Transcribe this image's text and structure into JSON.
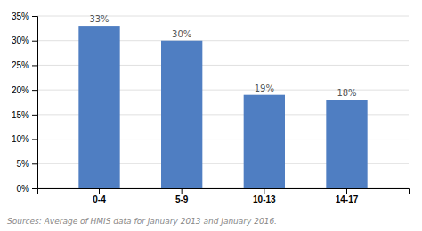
{
  "chart_data": {
    "type": "bar",
    "categories": [
      "0-4",
      "5-9",
      "10-13",
      "14-17"
    ],
    "values": [
      33,
      30,
      19,
      18
    ],
    "value_labels": [
      "33%",
      "30%",
      "19%",
      "18%"
    ],
    "data_labels": true,
    "color": "#4f7ec2",
    "ylim": [
      0,
      35
    ],
    "yticks": [
      {
        "value": 0,
        "label": "0%"
      },
      {
        "value": 5,
        "label": "5%"
      },
      {
        "value": 10,
        "label": "10%"
      },
      {
        "value": 15,
        "label": "15%"
      },
      {
        "value": 20,
        "label": "20%"
      },
      {
        "value": 25,
        "label": "25%"
      },
      {
        "value": 30,
        "label": "30%"
      },
      {
        "value": 35,
        "label": "35%"
      }
    ],
    "grid": true,
    "annotations": [
      "Sources: Average of HMIS data for January 2013 and January 2016."
    ]
  }
}
